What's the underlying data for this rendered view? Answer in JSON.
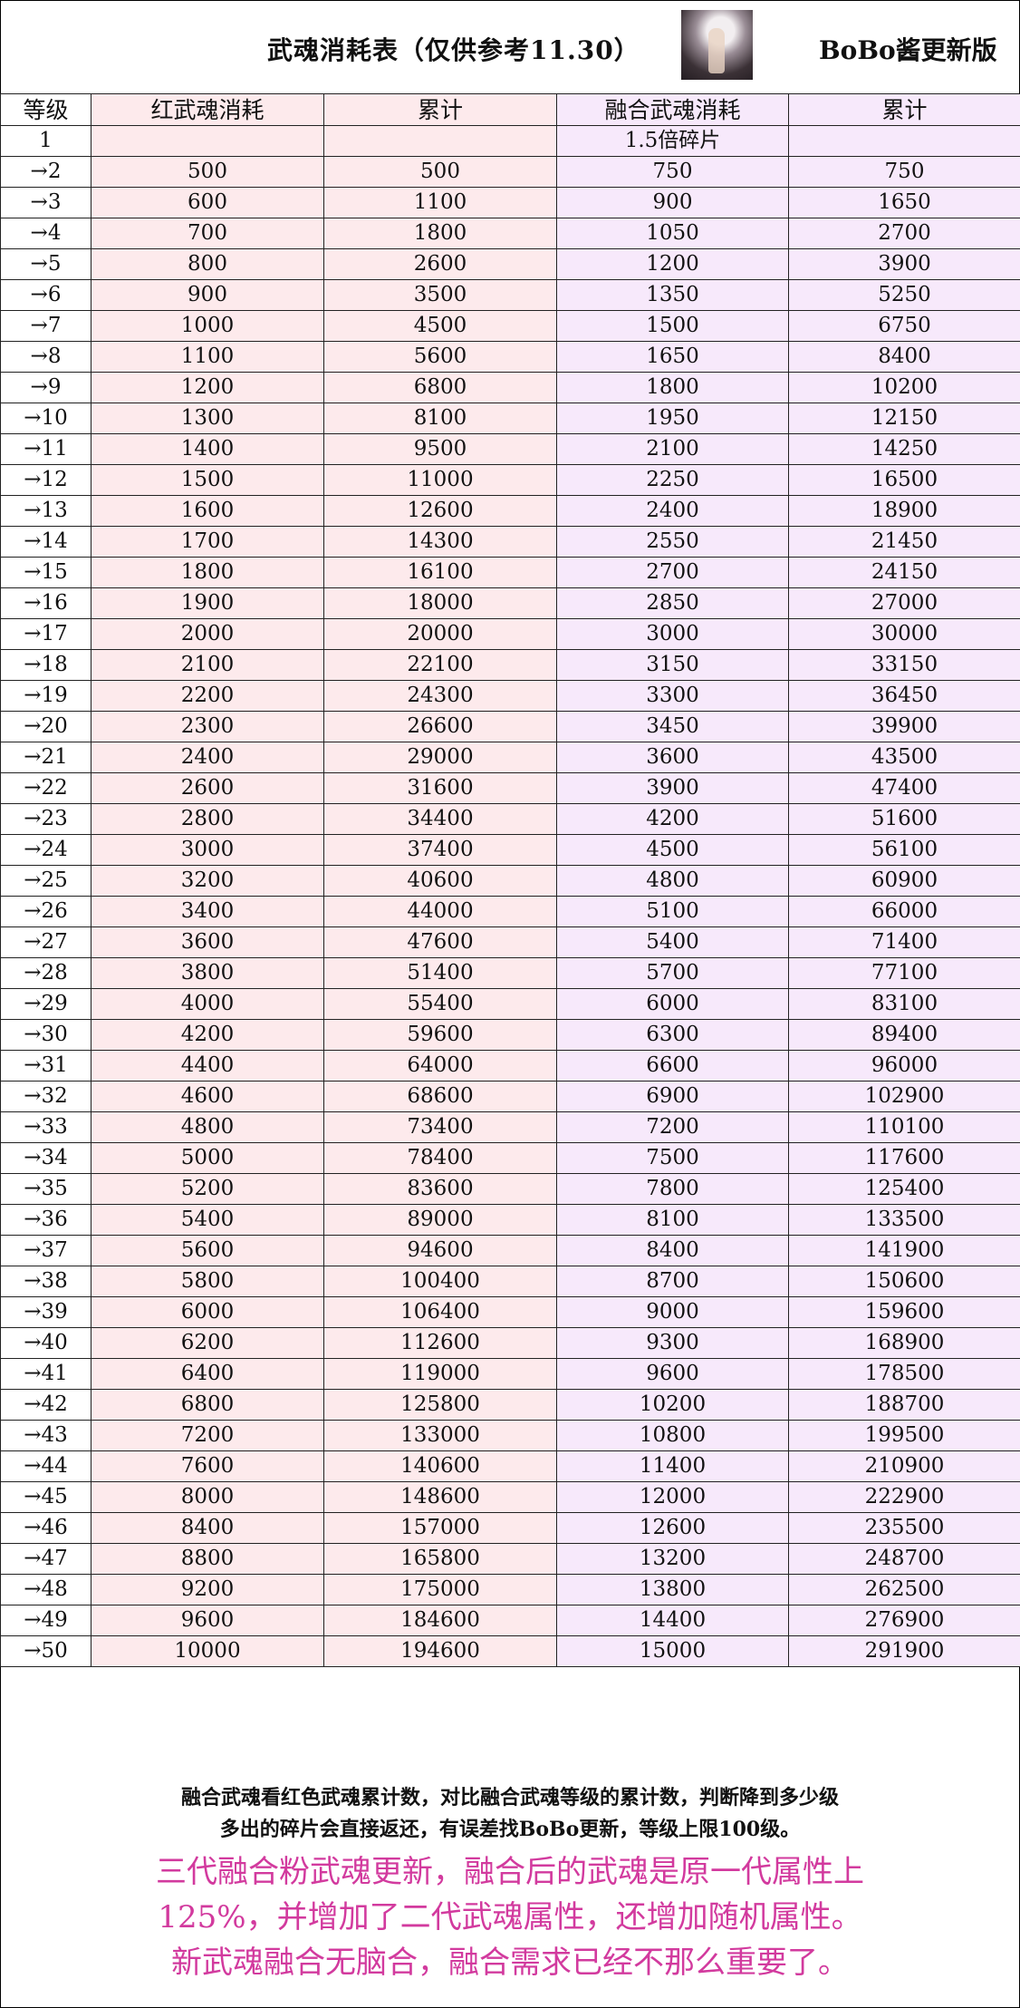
{
  "header": {
    "title": "武魂消耗表（仅供参考11.30）",
    "brand": "BoBo酱更新版",
    "avatar_icon": "anime-girl-portrait"
  },
  "table": {
    "columns": [
      "等级",
      "红武魂消耗",
      "累计",
      "融合武魂消耗",
      "累计"
    ],
    "first_row": {
      "level": "1",
      "note": "1.5倍碎片"
    },
    "rows": [
      [
        "→2",
        "500",
        "500",
        "750",
        "750"
      ],
      [
        "→3",
        "600",
        "1100",
        "900",
        "1650"
      ],
      [
        "→4",
        "700",
        "1800",
        "1050",
        "2700"
      ],
      [
        "→5",
        "800",
        "2600",
        "1200",
        "3900"
      ],
      [
        "→6",
        "900",
        "3500",
        "1350",
        "5250"
      ],
      [
        "→7",
        "1000",
        "4500",
        "1500",
        "6750"
      ],
      [
        "→8",
        "1100",
        "5600",
        "1650",
        "8400"
      ],
      [
        "→9",
        "1200",
        "6800",
        "1800",
        "10200"
      ],
      [
        "→10",
        "1300",
        "8100",
        "1950",
        "12150"
      ],
      [
        "→11",
        "1400",
        "9500",
        "2100",
        "14250"
      ],
      [
        "→12",
        "1500",
        "11000",
        "2250",
        "16500"
      ],
      [
        "→13",
        "1600",
        "12600",
        "2400",
        "18900"
      ],
      [
        "→14",
        "1700",
        "14300",
        "2550",
        "21450"
      ],
      [
        "→15",
        "1800",
        "16100",
        "2700",
        "24150"
      ],
      [
        "→16",
        "1900",
        "18000",
        "2850",
        "27000"
      ],
      [
        "→17",
        "2000",
        "20000",
        "3000",
        "30000"
      ],
      [
        "→18",
        "2100",
        "22100",
        "3150",
        "33150"
      ],
      [
        "→19",
        "2200",
        "24300",
        "3300",
        "36450"
      ],
      [
        "→20",
        "2300",
        "26600",
        "3450",
        "39900"
      ],
      [
        "→21",
        "2400",
        "29000",
        "3600",
        "43500"
      ],
      [
        "→22",
        "2600",
        "31600",
        "3900",
        "47400"
      ],
      [
        "→23",
        "2800",
        "34400",
        "4200",
        "51600"
      ],
      [
        "→24",
        "3000",
        "37400",
        "4500",
        "56100"
      ],
      [
        "→25",
        "3200",
        "40600",
        "4800",
        "60900"
      ],
      [
        "→26",
        "3400",
        "44000",
        "5100",
        "66000"
      ],
      [
        "→27",
        "3600",
        "47600",
        "5400",
        "71400"
      ],
      [
        "→28",
        "3800",
        "51400",
        "5700",
        "77100"
      ],
      [
        "→29",
        "4000",
        "55400",
        "6000",
        "83100"
      ],
      [
        "→30",
        "4200",
        "59600",
        "6300",
        "89400"
      ],
      [
        "→31",
        "4400",
        "64000",
        "6600",
        "96000"
      ],
      [
        "→32",
        "4600",
        "68600",
        "6900",
        "102900"
      ],
      [
        "→33",
        "4800",
        "73400",
        "7200",
        "110100"
      ],
      [
        "→34",
        "5000",
        "78400",
        "7500",
        "117600"
      ],
      [
        "→35",
        "5200",
        "83600",
        "7800",
        "125400"
      ],
      [
        "→36",
        "5400",
        "89000",
        "8100",
        "133500"
      ],
      [
        "→37",
        "5600",
        "94600",
        "8400",
        "141900"
      ],
      [
        "→38",
        "5800",
        "100400",
        "8700",
        "150600"
      ],
      [
        "→39",
        "6000",
        "106400",
        "9000",
        "159600"
      ],
      [
        "→40",
        "6200",
        "112600",
        "9300",
        "168900"
      ],
      [
        "→41",
        "6400",
        "119000",
        "9600",
        "178500"
      ],
      [
        "→42",
        "6800",
        "125800",
        "10200",
        "188700"
      ],
      [
        "→43",
        "7200",
        "133000",
        "10800",
        "199500"
      ],
      [
        "→44",
        "7600",
        "140600",
        "11400",
        "210900"
      ],
      [
        "→45",
        "8000",
        "148600",
        "12000",
        "222900"
      ],
      [
        "→46",
        "8400",
        "157000",
        "12600",
        "235500"
      ],
      [
        "→47",
        "8800",
        "165800",
        "13200",
        "248700"
      ],
      [
        "→48",
        "9200",
        "175000",
        "13800",
        "262500"
      ],
      [
        "→49",
        "9600",
        "184600",
        "14400",
        "276900"
      ],
      [
        "→50",
        "10000",
        "194600",
        "15000",
        "291900"
      ]
    ]
  },
  "footer": {
    "notes": [
      "融合武魂看红色武魂累计数，对比融合武魂等级的累计数，判断降到多少级",
      "多出的碎片会直接返还，有误差找BoBo更新，等级上限100级。"
    ],
    "highlight": [
      "三代融合粉武魂更新，融合后的武魂是原一代属性上",
      "125%，并增加了二代武魂属性，还增加随机属性。",
      "新武魂融合无脑合，融合需求已经不那么重要了。"
    ],
    "highlight_color": "#d23a9e"
  },
  "colors": {
    "red_column_bg": "#fdeaec",
    "fusion_column_bg": "#f7e9fb"
  }
}
